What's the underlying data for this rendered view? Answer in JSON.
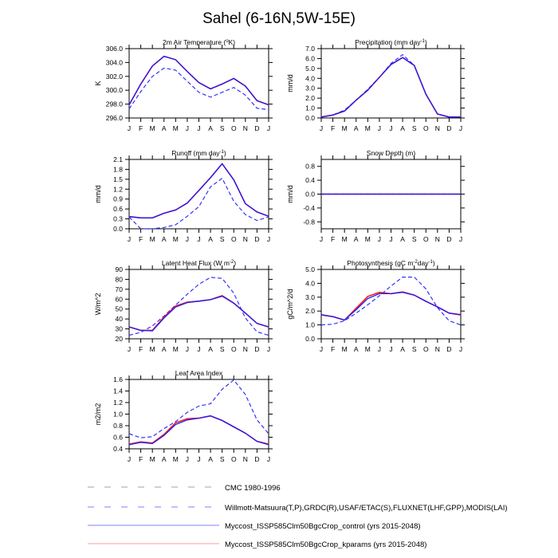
{
  "title": "Sahel (6-16N,5W-15E)",
  "colors": {
    "control": "#1a1aff",
    "kparams": "#ff1a1a",
    "obs": "#3333ff",
    "frame": "#000000"
  },
  "months": [
    "J",
    "F",
    "M",
    "A",
    "M",
    "J",
    "J",
    "A",
    "S",
    "O",
    "N",
    "D",
    "J"
  ],
  "legend": [
    {
      "label": "CMC 1980-1996",
      "style": "dashed",
      "color": "#a0a0a0"
    },
    {
      "label": "Willmott-Matsuura(T,P),GRDC(R),USAF/ETAC(S),FLUXNET(LHF,GPP),MODIS(LAI)",
      "style": "dashed",
      "color": "#7f7fff"
    },
    {
      "label": "Myccost_ISSP585Clm50BgcCrop_control (yrs 2015-2048)",
      "style": "solid",
      "color": "#8080ff"
    },
    {
      "label": "Myccost_ISSP585Clm50BgcCrop_kparams (yrs 2015-2048)",
      "style": "solid",
      "color": "#ff9999"
    }
  ],
  "chart_data": [
    {
      "type": "line",
      "title": [
        {
          "t": "2m Air Temperature ("
        },
        {
          "t": "o",
          "sup": true
        },
        {
          "t": "K)"
        }
      ],
      "ylabel": "K",
      "ylim": [
        296,
        306
      ],
      "yticks": [
        "296.0",
        "298.0",
        "300.0",
        "302.0",
        "304.0",
        "306.0"
      ],
      "series": [
        {
          "key": "obs",
          "values": [
            297.3,
            299.8,
            302.0,
            303.2,
            302.9,
            301.3,
            299.7,
            299.0,
            299.7,
            300.4,
            299.3,
            297.4,
            297.2
          ]
        },
        {
          "key": "kparams",
          "values": [
            297.9,
            300.9,
            303.5,
            304.9,
            304.4,
            302.7,
            301.1,
            300.2,
            300.9,
            301.7,
            300.6,
            298.5,
            297.9
          ]
        },
        {
          "key": "control",
          "values": [
            297.9,
            300.9,
            303.5,
            304.9,
            304.4,
            302.7,
            301.1,
            300.2,
            300.9,
            301.7,
            300.6,
            298.5,
            297.9
          ]
        }
      ]
    },
    {
      "type": "line",
      "title": [
        {
          "t": "Precipitation (mm day"
        },
        {
          "t": "-1",
          "sup": true
        },
        {
          "t": ")"
        }
      ],
      "ylabel": "mm/d",
      "ylim": [
        0,
        7
      ],
      "yticks": [
        "0.0",
        "1.0",
        "2.0",
        "3.0",
        "4.0",
        "5.0",
        "6.0",
        "7.0"
      ],
      "series": [
        {
          "key": "obs",
          "values": [
            0.1,
            0.3,
            0.8,
            1.8,
            2.9,
            4.1,
            5.5,
            6.4,
            5.3,
            2.4,
            0.4,
            0.1,
            0.1
          ]
        },
        {
          "key": "kparams",
          "values": [
            0.1,
            0.3,
            0.7,
            1.8,
            2.8,
            4.1,
            5.4,
            6.1,
            5.3,
            2.4,
            0.4,
            0.1,
            0.1
          ]
        },
        {
          "key": "control",
          "values": [
            0.1,
            0.3,
            0.7,
            1.8,
            2.8,
            4.1,
            5.4,
            6.1,
            5.3,
            2.4,
            0.4,
            0.1,
            0.1
          ]
        }
      ]
    },
    {
      "type": "line",
      "title": [
        {
          "t": "Runoff (mm day"
        },
        {
          "t": "-1",
          "sup": true
        },
        {
          "t": ")"
        }
      ],
      "ylabel": "mm/d",
      "ylim": [
        0,
        2.1
      ],
      "yticks": [
        "0.0",
        "0.3",
        "0.6",
        "0.9",
        "1.2",
        "1.5",
        "1.8",
        "2.1"
      ],
      "series": [
        {
          "key": "obs",
          "values": [
            0.36,
            0.0,
            0.0,
            0.04,
            0.12,
            0.38,
            0.67,
            1.27,
            1.53,
            0.83,
            0.43,
            0.25,
            0.36
          ]
        },
        {
          "key": "kparams",
          "values": [
            0.37,
            0.33,
            0.33,
            0.47,
            0.57,
            0.78,
            1.16,
            1.55,
            1.97,
            1.48,
            0.76,
            0.51,
            0.38
          ]
        },
        {
          "key": "control",
          "values": [
            0.37,
            0.33,
            0.33,
            0.47,
            0.57,
            0.78,
            1.16,
            1.55,
            1.97,
            1.48,
            0.76,
            0.51,
            0.38
          ]
        }
      ]
    },
    {
      "type": "line",
      "title": [
        {
          "t": "Snow Depth (m)"
        }
      ],
      "ylabel": "mm/d",
      "ylim": [
        -1,
        1
      ],
      "yticks": [
        "-0.8",
        "-0.4",
        "0.0",
        "0.4",
        "0.8"
      ],
      "series": [
        {
          "key": "obs",
          "values": [
            0,
            0,
            0,
            0,
            0,
            0,
            0,
            0,
            0,
            0,
            0,
            0,
            0
          ]
        },
        {
          "key": "kparams",
          "values": [
            0,
            0,
            0,
            0,
            0,
            0,
            0,
            0,
            0,
            0,
            0,
            0,
            0
          ]
        },
        {
          "key": "control",
          "values": [
            0,
            0,
            0,
            0,
            0,
            0,
            0,
            0,
            0,
            0,
            0,
            0,
            0
          ]
        }
      ]
    },
    {
      "type": "line",
      "title": [
        {
          "t": "Latent Heat Flux (W m"
        },
        {
          "t": "-2",
          "sup": true
        },
        {
          "t": ")"
        }
      ],
      "ylabel": "W/m^2",
      "ylim": [
        20,
        90
      ],
      "yticks": [
        "20",
        "30",
        "40",
        "50",
        "60",
        "70",
        "80",
        "90"
      ],
      "series": [
        {
          "key": "obs",
          "values": [
            23.5,
            26.5,
            33,
            43,
            54,
            65,
            75,
            82,
            81,
            66,
            41,
            27,
            23.5
          ]
        },
        {
          "key": "kparams",
          "values": [
            32,
            28.5,
            28.5,
            42,
            53,
            57,
            58,
            59.5,
            63.5,
            56,
            46,
            35.5,
            32
          ]
        },
        {
          "key": "control",
          "values": [
            32,
            28.5,
            28,
            41,
            52,
            56.5,
            58,
            59.5,
            63,
            56,
            46,
            35.5,
            32
          ]
        }
      ]
    },
    {
      "type": "line",
      "title": [
        {
          "t": "Photosynthesis (gC m"
        },
        {
          "t": "-2",
          "sup": true
        },
        {
          "t": "day"
        },
        {
          "t": "-1",
          "sup": true
        },
        {
          "t": ")"
        }
      ],
      "ylabel": "gC/m^2/d",
      "ylim": [
        0,
        5
      ],
      "yticks": [
        "0.0",
        "1.0",
        "2.0",
        "3.0",
        "4.0",
        "5.0"
      ],
      "series": [
        {
          "key": "obs",
          "values": [
            1.0,
            1.05,
            1.3,
            1.85,
            2.45,
            3.1,
            3.8,
            4.45,
            4.45,
            3.6,
            2.25,
            1.3,
            1.0
          ]
        },
        {
          "key": "kparams",
          "values": [
            1.72,
            1.6,
            1.35,
            2.2,
            3.05,
            3.35,
            3.25,
            3.38,
            3.15,
            2.7,
            2.3,
            1.85,
            1.72
          ]
        },
        {
          "key": "control",
          "values": [
            1.75,
            1.6,
            1.35,
            2.1,
            2.9,
            3.25,
            3.25,
            3.35,
            3.15,
            2.7,
            2.3,
            1.85,
            1.75
          ]
        }
      ]
    },
    {
      "type": "line",
      "title": [
        {
          "t": "Leaf Area Index"
        }
      ],
      "ylabel": "m2/m2",
      "ylim": [
        0.4,
        1.6
      ],
      "yticks": [
        "0.4",
        "0.6",
        "0.8",
        "1.0",
        "1.2",
        "1.4",
        "1.6"
      ],
      "series": [
        {
          "key": "obs",
          "values": [
            0.66,
            0.59,
            0.61,
            0.75,
            0.87,
            1.03,
            1.14,
            1.18,
            1.43,
            1.59,
            1.34,
            0.9,
            0.66
          ]
        },
        {
          "key": "kparams",
          "values": [
            0.48,
            0.52,
            0.5,
            0.65,
            0.85,
            0.92,
            0.93,
            0.97,
            0.89,
            0.78,
            0.67,
            0.53,
            0.48
          ]
        },
        {
          "key": "control",
          "values": [
            0.47,
            0.51,
            0.49,
            0.63,
            0.82,
            0.9,
            0.93,
            0.97,
            0.89,
            0.78,
            0.67,
            0.53,
            0.47
          ]
        }
      ]
    }
  ]
}
